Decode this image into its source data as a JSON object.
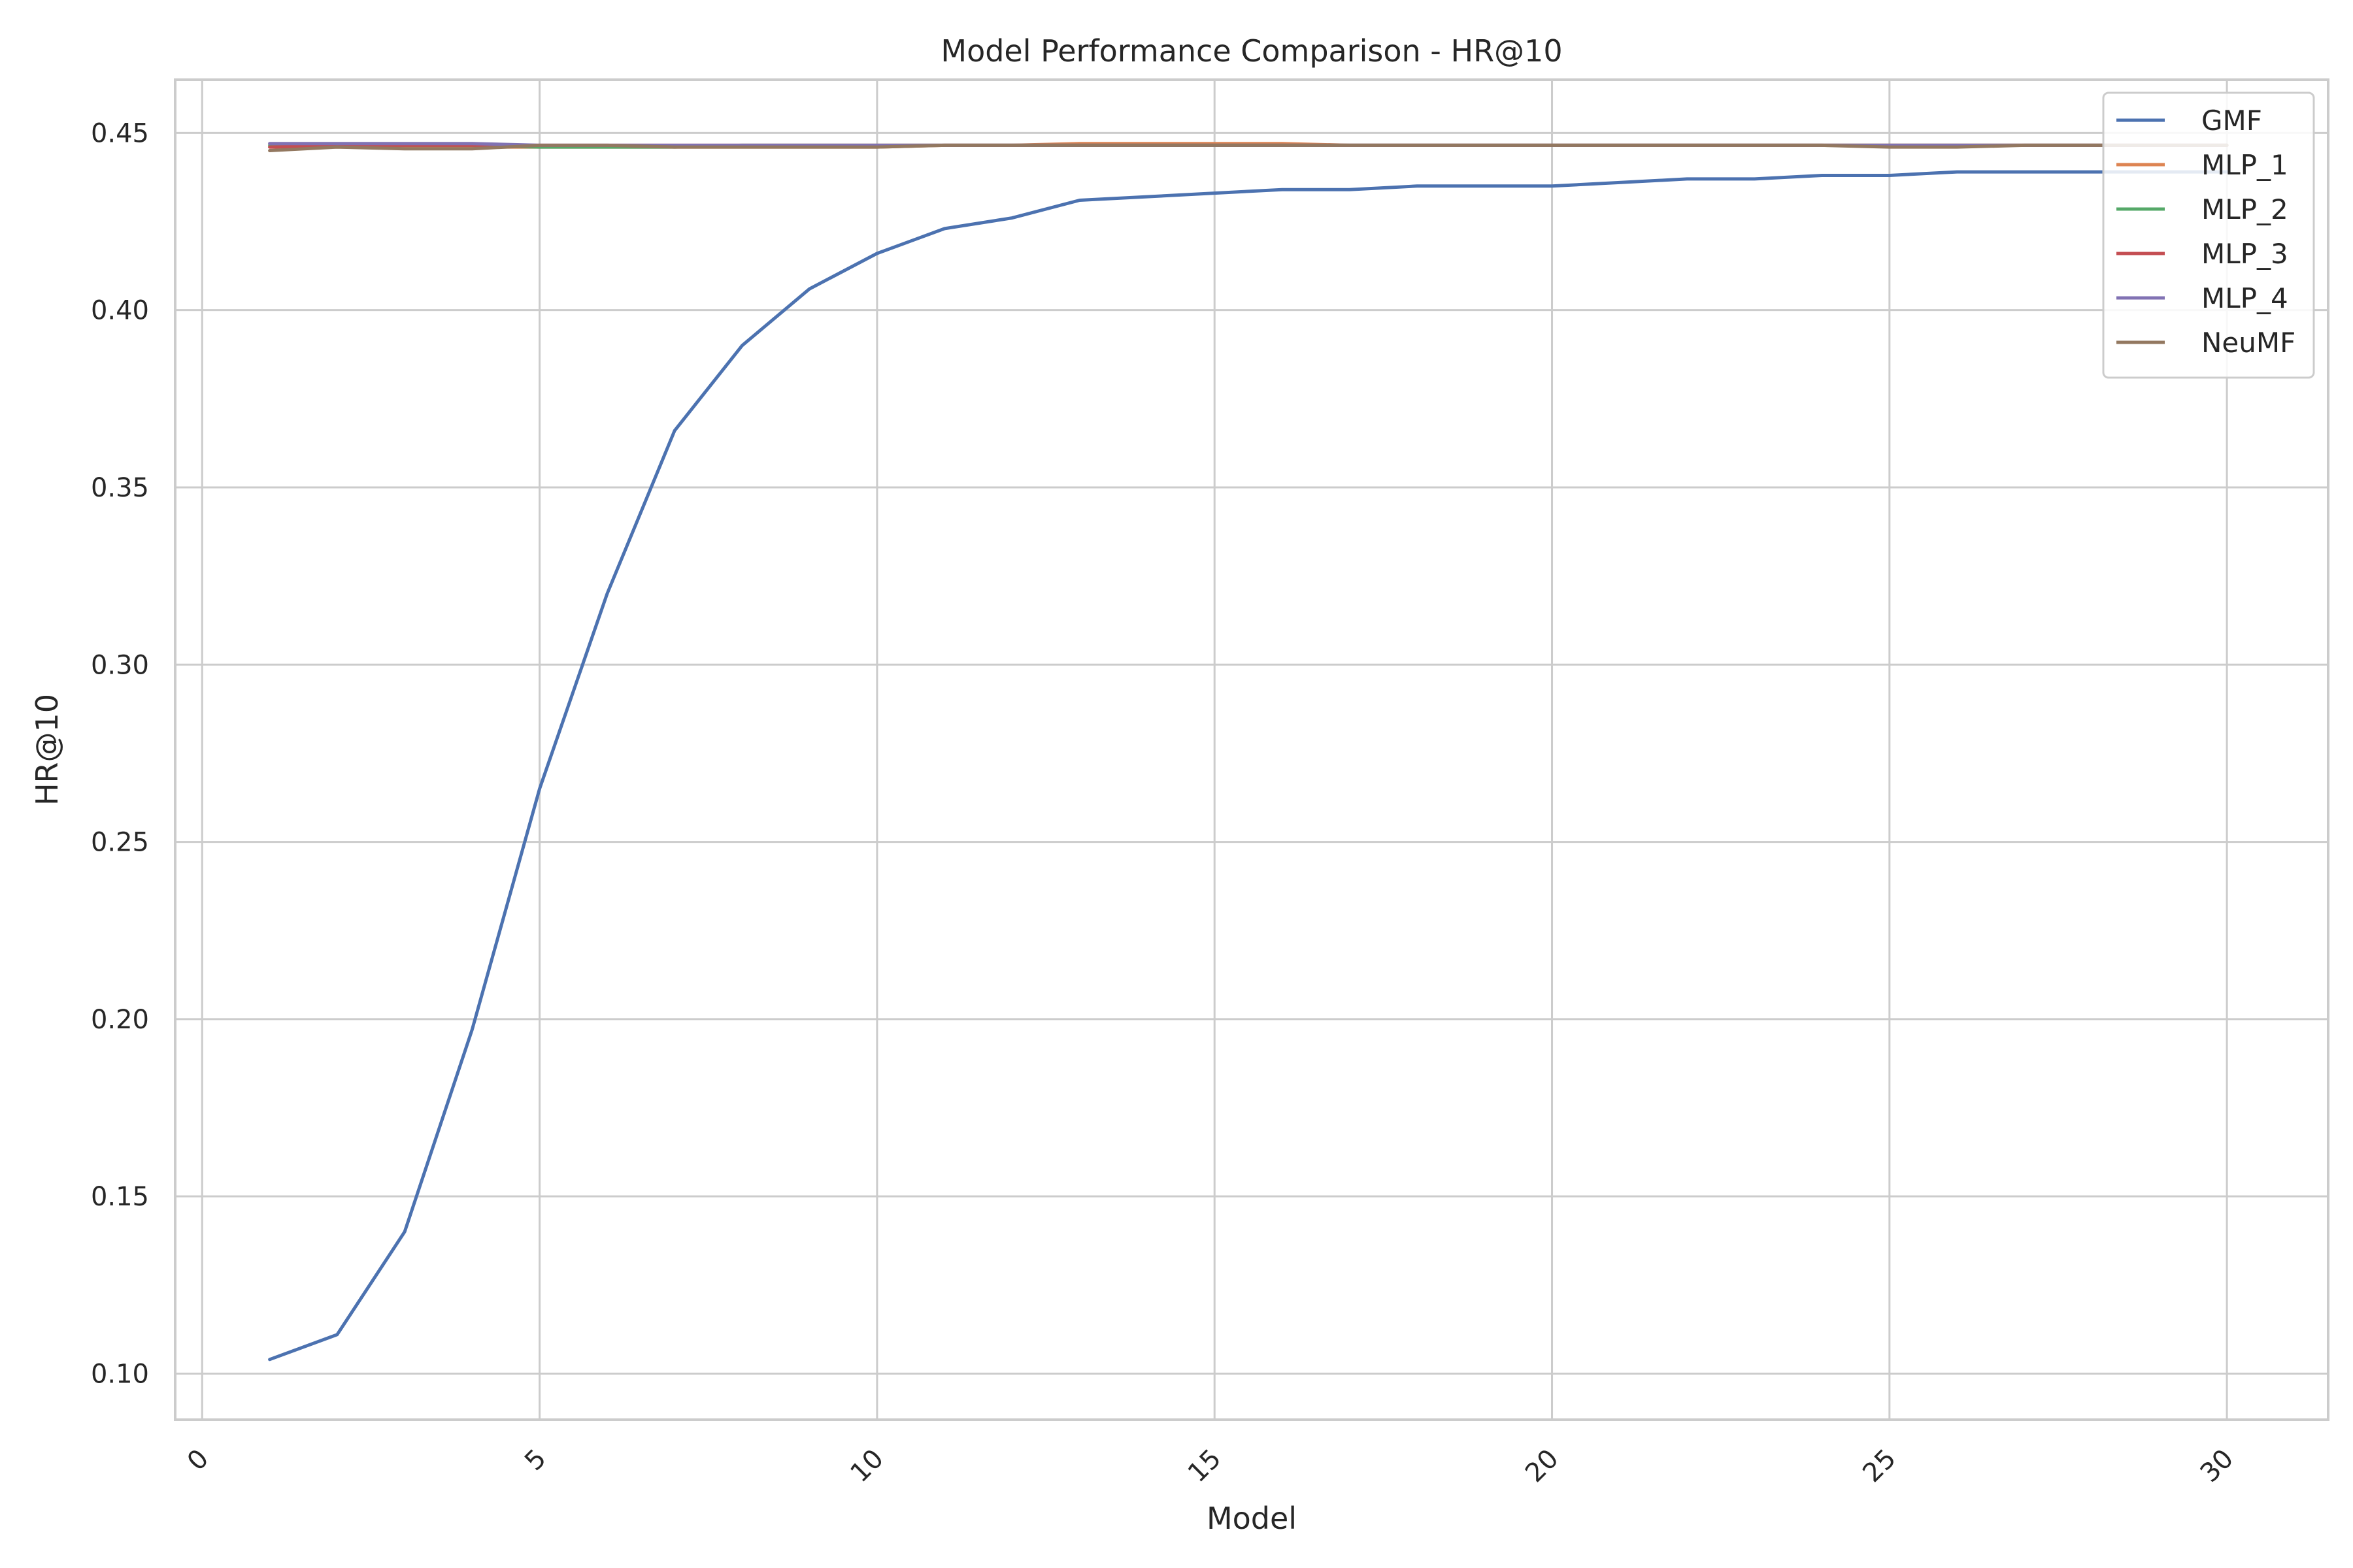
{
  "chart_data": {
    "type": "line",
    "title": "Model Performance Comparison - HR@10",
    "xlabel": "Model",
    "ylabel": "HR@10",
    "xlim": [
      -0.4,
      31.5
    ],
    "ylim": [
      0.087,
      0.465
    ],
    "x_ticks": [
      0,
      5,
      10,
      15,
      20,
      25,
      30
    ],
    "y_ticks": [
      0.1,
      0.15,
      0.2,
      0.25,
      0.3,
      0.35,
      0.4,
      0.45
    ],
    "y_tick_labels": [
      "0.10",
      "0.15",
      "0.20",
      "0.25",
      "0.30",
      "0.35",
      "0.40",
      "0.45"
    ],
    "grid": true,
    "legend_position": "top-right",
    "x": [
      1,
      2,
      3,
      4,
      5,
      6,
      7,
      8,
      9,
      10,
      11,
      12,
      13,
      14,
      15,
      16,
      17,
      18,
      19,
      20,
      21,
      22,
      23,
      24,
      25,
      26,
      27,
      28,
      29,
      30
    ],
    "series": [
      {
        "name": "GMF",
        "color": "#4c72b0",
        "values": [
          0.104,
          0.111,
          0.14,
          0.197,
          0.265,
          0.32,
          0.366,
          0.39,
          0.406,
          0.416,
          0.423,
          0.426,
          0.431,
          0.432,
          0.433,
          0.434,
          0.434,
          0.435,
          0.435,
          0.435,
          0.436,
          0.437,
          0.437,
          0.438,
          0.438,
          0.439,
          0.439,
          0.439,
          0.439,
          0.439
        ]
      },
      {
        "name": "MLP_1",
        "color": "#dd8452",
        "values": [
          0.446,
          0.446,
          0.446,
          0.446,
          0.446,
          0.446,
          0.446,
          0.446,
          0.446,
          0.446,
          0.4465,
          0.4465,
          0.447,
          0.447,
          0.447,
          0.447,
          0.4465,
          0.4465,
          0.4465,
          0.4465,
          0.4465,
          0.4465,
          0.4465,
          0.4465,
          0.4465,
          0.4465,
          0.4465,
          0.4465,
          0.4465,
          0.4465
        ]
      },
      {
        "name": "MLP_2",
        "color": "#55a868",
        "values": [
          0.4465,
          0.4465,
          0.4465,
          0.4465,
          0.446,
          0.446,
          0.446,
          0.4465,
          0.4465,
          0.4465,
          0.4465,
          0.4465,
          0.4465,
          0.4465,
          0.4465,
          0.4465,
          0.4465,
          0.4465,
          0.4465,
          0.4465,
          0.4465,
          0.4465,
          0.4465,
          0.4465,
          0.4465,
          0.4465,
          0.4465,
          0.4465,
          0.4465,
          0.4465
        ]
      },
      {
        "name": "MLP_3",
        "color": "#c44e52",
        "values": [
          0.446,
          0.4465,
          0.4465,
          0.4465,
          0.4465,
          0.4465,
          0.4465,
          0.4465,
          0.4465,
          0.4465,
          0.4465,
          0.4465,
          0.4465,
          0.4465,
          0.4465,
          0.4465,
          0.4465,
          0.4465,
          0.4465,
          0.4465,
          0.4465,
          0.4465,
          0.4465,
          0.4465,
          0.4465,
          0.4465,
          0.4465,
          0.4465,
          0.4465,
          0.4465
        ]
      },
      {
        "name": "MLP_4",
        "color": "#8172b3",
        "values": [
          0.447,
          0.447,
          0.447,
          0.447,
          0.4465,
          0.4465,
          0.4465,
          0.4465,
          0.4465,
          0.4465,
          0.4465,
          0.4465,
          0.4465,
          0.4465,
          0.4465,
          0.4465,
          0.4465,
          0.4465,
          0.4465,
          0.4465,
          0.4465,
          0.4465,
          0.4465,
          0.4465,
          0.4465,
          0.4465,
          0.4465,
          0.4465,
          0.4465,
          0.4465
        ]
      },
      {
        "name": "NeuMF",
        "color": "#937860",
        "values": [
          0.445,
          0.446,
          0.4455,
          0.4455,
          0.4465,
          0.4465,
          0.446,
          0.446,
          0.446,
          0.446,
          0.4465,
          0.4465,
          0.4465,
          0.4465,
          0.4465,
          0.4465,
          0.4465,
          0.4465,
          0.4465,
          0.4465,
          0.4465,
          0.4465,
          0.4465,
          0.4465,
          0.446,
          0.446,
          0.4465,
          0.4465,
          0.4465,
          0.4465
        ]
      }
    ]
  }
}
